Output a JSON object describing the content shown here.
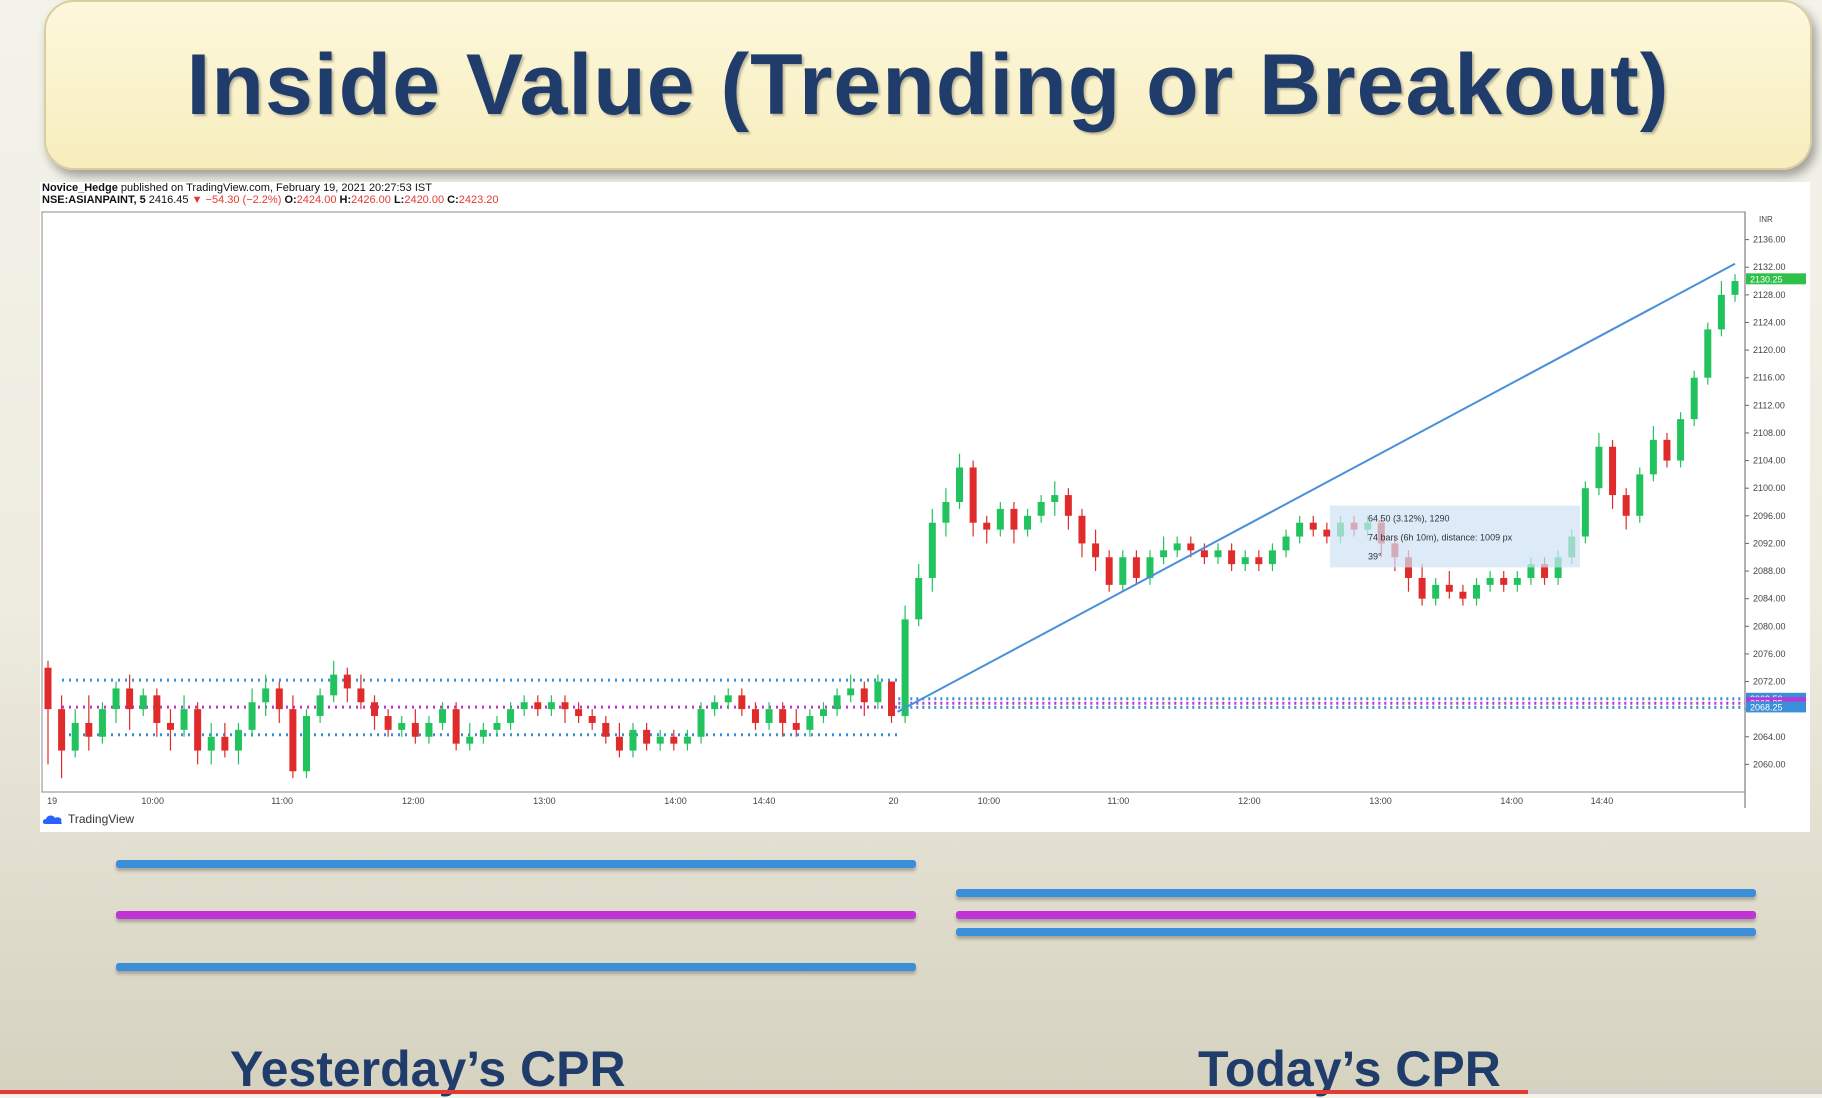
{
  "title": "Inside Value (Trending or Breakout)",
  "chart_header": {
    "line1_user": "Novice_Hedge",
    "line1_rest": "published on TradingView.com, February 19, 2021 20:27:53 IST",
    "symbol": "NSE:ASIANPAINT, 5",
    "last": "2416.45",
    "change": "▼ −54.30 (−2.2%)",
    "o_label": "O:",
    "o_val": "2424.00",
    "h_label": "H:",
    "h_val": "2426.00",
    "l_label": "L:",
    "l_val": "2420.00",
    "c_label": "C:",
    "c_val": "2423.20"
  },
  "tradingview_label": "TradingView",
  "labels": {
    "yesterday": "Yesterday’s CPR",
    "today": "Today’s CPR"
  },
  "colors": {
    "title": "#1f3c6b",
    "up": "#22c35e",
    "down": "#e02b2b",
    "cpr_blue": "#3a8fd8",
    "cpr_magenta": "#c033d6",
    "trendline": "#4a90d9",
    "price_tag": "#2fc04a"
  },
  "chart_data": {
    "type": "candlestick",
    "ylim": [
      2056,
      2140
    ],
    "y_ticks": [
      2060,
      2064,
      2068,
      2072,
      2076,
      2080,
      2084,
      2088,
      2092,
      2096,
      2100,
      2104,
      2108,
      2112,
      2116,
      2120,
      2124,
      2128,
      2132,
      2136
    ],
    "x_tick_labels": [
      "19",
      "10:00",
      "11:00",
      "12:00",
      "13:00",
      "14:00",
      "14:40",
      "20",
      "10:00",
      "11:00",
      "12:00",
      "13:00",
      "14:00",
      "14:40"
    ],
    "price_tags": [
      {
        "text": "2130.25",
        "value": 2130.25,
        "color": "#2fc04a"
      },
      {
        "text": "2069.50",
        "value": 2069.5,
        "color": "#3a8fd8"
      },
      {
        "text": "2068.85",
        "value": 2068.85,
        "color": "#c033d6"
      },
      {
        "text": "2068.25",
        "value": 2068.25,
        "color": "#3a8fd8"
      }
    ],
    "top_tag": "INR",
    "yesterday_cpr": {
      "tc": 2072.2,
      "pivot": 2068.3,
      "bc": 2064.3
    },
    "today_cpr": {
      "tc": 2069.5,
      "pivot": 2068.85,
      "bc": 2068.25
    },
    "trendline": {
      "from": [
        0.5,
        2067.6
      ],
      "to": [
        1.0,
        2132.5
      ]
    },
    "measure_box": {
      "line1": "64.50 (3.12%), 1290",
      "line2": "74 bars (6h 10m), distance: 1009 px",
      "line3": "39°"
    },
    "candles_day1": [
      [
        2074,
        2068,
        2060,
        2075
      ],
      [
        2068,
        2062,
        2058,
        2070
      ],
      [
        2062,
        2066,
        2061,
        2068
      ],
      [
        2066,
        2064,
        2062,
        2070
      ],
      [
        2064,
        2068,
        2063,
        2069
      ],
      [
        2068,
        2071,
        2066,
        2072
      ],
      [
        2071,
        2068,
        2065,
        2073
      ],
      [
        2068,
        2070,
        2067,
        2071
      ],
      [
        2070,
        2066,
        2064,
        2071
      ],
      [
        2066,
        2065,
        2062,
        2068
      ],
      [
        2065,
        2068,
        2064,
        2070
      ],
      [
        2068,
        2062,
        2060,
        2069
      ],
      [
        2062,
        2064,
        2060,
        2066
      ],
      [
        2064,
        2062,
        2061,
        2066
      ],
      [
        2062,
        2065,
        2060,
        2066
      ],
      [
        2065,
        2069,
        2064,
        2071
      ],
      [
        2069,
        2071,
        2067,
        2073
      ],
      [
        2071,
        2068,
        2066,
        2072
      ],
      [
        2068,
        2059,
        2058,
        2070
      ],
      [
        2059,
        2067,
        2058,
        2068
      ],
      [
        2067,
        2070,
        2066,
        2071
      ],
      [
        2070,
        2073,
        2069,
        2075
      ],
      [
        2073,
        2071,
        2069,
        2074
      ],
      [
        2071,
        2069,
        2068,
        2073
      ],
      [
        2069,
        2067,
        2065,
        2070
      ],
      [
        2067,
        2065,
        2064,
        2068
      ],
      [
        2065,
        2066,
        2064,
        2067
      ],
      [
        2066,
        2064,
        2063,
        2068
      ],
      [
        2064,
        2066,
        2063,
        2067
      ],
      [
        2066,
        2068,
        2065,
        2069
      ],
      [
        2068,
        2063,
        2062,
        2069
      ],
      [
        2063,
        2064,
        2062,
        2066
      ],
      [
        2064,
        2065,
        2063,
        2066
      ],
      [
        2065,
        2066,
        2064,
        2067
      ],
      [
        2066,
        2068,
        2065,
        2069
      ],
      [
        2068,
        2069,
        2067,
        2070
      ],
      [
        2069,
        2068,
        2067,
        2070
      ],
      [
        2068,
        2069,
        2067,
        2070
      ],
      [
        2069,
        2068,
        2066,
        2070
      ],
      [
        2068,
        2067,
        2066,
        2069
      ],
      [
        2067,
        2066,
        2065,
        2068
      ],
      [
        2066,
        2064,
        2063,
        2067
      ],
      [
        2064,
        2062,
        2061,
        2066
      ],
      [
        2062,
        2065,
        2061,
        2066
      ],
      [
        2065,
        2063,
        2062,
        2066
      ],
      [
        2063,
        2064,
        2062,
        2065
      ],
      [
        2064,
        2063,
        2062,
        2065
      ],
      [
        2063,
        2064,
        2062,
        2065
      ],
      [
        2064,
        2068,
        2063,
        2069
      ],
      [
        2068,
        2069,
        2067,
        2070
      ],
      [
        2069,
        2070,
        2068,
        2071
      ],
      [
        2070,
        2068,
        2067,
        2071
      ],
      [
        2068,
        2066,
        2065,
        2069
      ],
      [
        2066,
        2068,
        2065,
        2069
      ],
      [
        2068,
        2066,
        2064,
        2069
      ],
      [
        2066,
        2065,
        2064,
        2068
      ],
      [
        2065,
        2067,
        2064,
        2068
      ],
      [
        2067,
        2068,
        2066,
        2069
      ],
      [
        2068,
        2070,
        2067,
        2071
      ],
      [
        2070,
        2071,
        2069,
        2073
      ],
      [
        2071,
        2069,
        2067,
        2072
      ],
      [
        2069,
        2072,
        2068,
        2073
      ],
      [
        2072,
        2067,
        2066,
        2072
      ]
    ],
    "candles_day2": [
      [
        2067,
        2081,
        2066,
        2083
      ],
      [
        2081,
        2087,
        2080,
        2089
      ],
      [
        2087,
        2095,
        2085,
        2097
      ],
      [
        2095,
        2098,
        2093,
        2100
      ],
      [
        2098,
        2103,
        2097,
        2105
      ],
      [
        2103,
        2095,
        2093,
        2104
      ],
      [
        2095,
        2094,
        2092,
        2096
      ],
      [
        2094,
        2097,
        2093,
        2098
      ],
      [
        2097,
        2094,
        2092,
        2098
      ],
      [
        2094,
        2096,
        2093,
        2097
      ],
      [
        2096,
        2098,
        2095,
        2099
      ],
      [
        2098,
        2099,
        2096,
        2101
      ],
      [
        2099,
        2096,
        2094,
        2100
      ],
      [
        2096,
        2092,
        2090,
        2097
      ],
      [
        2092,
        2090,
        2088,
        2094
      ],
      [
        2090,
        2086,
        2085,
        2091
      ],
      [
        2086,
        2090,
        2085,
        2091
      ],
      [
        2090,
        2087,
        2086,
        2091
      ],
      [
        2087,
        2090,
        2086,
        2091
      ],
      [
        2090,
        2091,
        2089,
        2093
      ],
      [
        2091,
        2092,
        2090,
        2093
      ],
      [
        2092,
        2091,
        2090,
        2093
      ],
      [
        2091,
        2090,
        2089,
        2092
      ],
      [
        2090,
        2091,
        2089,
        2092
      ],
      [
        2091,
        2089,
        2088,
        2092
      ],
      [
        2089,
        2090,
        2088,
        2091
      ],
      [
        2090,
        2089,
        2088,
        2091
      ],
      [
        2089,
        2091,
        2088,
        2092
      ],
      [
        2091,
        2093,
        2090,
        2094
      ],
      [
        2093,
        2095,
        2092,
        2096
      ],
      [
        2095,
        2094,
        2093,
        2096
      ],
      [
        2094,
        2093,
        2092,
        2095
      ],
      [
        2093,
        2095,
        2092,
        2096
      ],
      [
        2095,
        2094,
        2093,
        2096
      ],
      [
        2094,
        2095,
        2093,
        2096
      ],
      [
        2095,
        2092,
        2090,
        2096
      ],
      [
        2092,
        2090,
        2088,
        2093
      ],
      [
        2090,
        2087,
        2085,
        2091
      ],
      [
        2087,
        2084,
        2083,
        2089
      ],
      [
        2084,
        2086,
        2083,
        2087
      ],
      [
        2086,
        2085,
        2084,
        2088
      ],
      [
        2085,
        2084,
        2083,
        2086
      ],
      [
        2084,
        2086,
        2083,
        2087
      ],
      [
        2086,
        2087,
        2085,
        2088
      ],
      [
        2087,
        2086,
        2085,
        2088
      ],
      [
        2086,
        2087,
        2085,
        2088
      ],
      [
        2087,
        2089,
        2086,
        2090
      ],
      [
        2089,
        2087,
        2086,
        2090
      ],
      [
        2087,
        2090,
        2086,
        2091
      ],
      [
        2090,
        2093,
        2089,
        2094
      ],
      [
        2093,
        2100,
        2092,
        2101
      ],
      [
        2100,
        2106,
        2099,
        2108
      ],
      [
        2106,
        2099,
        2097,
        2107
      ],
      [
        2099,
        2096,
        2094,
        2100
      ],
      [
        2096,
        2102,
        2095,
        2103
      ],
      [
        2102,
        2107,
        2101,
        2109
      ],
      [
        2107,
        2104,
        2103,
        2108
      ],
      [
        2104,
        2110,
        2103,
        2111
      ],
      [
        2110,
        2116,
        2109,
        2117
      ],
      [
        2116,
        2123,
        2115,
        2124
      ],
      [
        2123,
        2128,
        2122,
        2130
      ],
      [
        2128,
        2130,
        2127,
        2131
      ]
    ]
  }
}
